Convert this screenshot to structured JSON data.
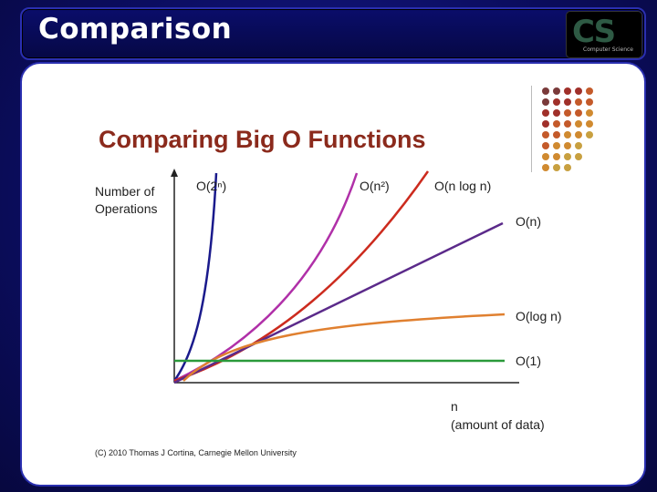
{
  "slide": {
    "title": "Comparison",
    "logo_text": "CS",
    "logo_subtext": "Computer Science"
  },
  "chart_data": {
    "type": "line",
    "title": "Comparing Big O Functions",
    "ylabel": "Number of Operations",
    "xlabel_line1": "n",
    "xlabel_line2": "(amount of data)",
    "series": [
      {
        "name": "O(2ⁿ)",
        "color": "#1a1a8c"
      },
      {
        "name": "O(n²)",
        "color": "#b030a8"
      },
      {
        "name": "O(n log n)",
        "color": "#cc2b1e"
      },
      {
        "name": "O(n)",
        "color": "#5b2a8a"
      },
      {
        "name": "O(log n)",
        "color": "#e08030"
      },
      {
        "name": "O(1)",
        "color": "#2a9a3a"
      }
    ],
    "credit": "(C) 2010 Thomas J Cortina, Carnegie Mellon University"
  },
  "decor": {
    "dot_colors": [
      "#7a3a3a",
      "#a0302a",
      "#c45a2a",
      "#d08a30",
      "#c8a040",
      "#d8c878"
    ]
  }
}
